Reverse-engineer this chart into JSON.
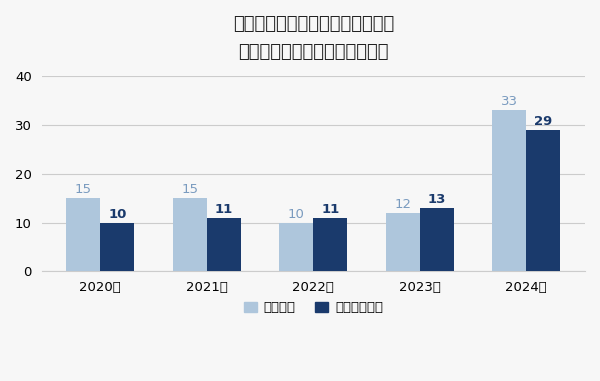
{
  "title_line1": "ペナルティ制度による取締件数と",
  "title_line2": "審査による取引停止件数の推移",
  "years": [
    "2020年",
    "2021年",
    "2022年",
    "2023年",
    "2024年"
  ],
  "series1_label": "取締件数",
  "series2_label": "取引停止件数",
  "series1_values": [
    15,
    15,
    10,
    12,
    33
  ],
  "series2_values": [
    10,
    11,
    11,
    13,
    29
  ],
  "series1_color": "#aec6dc",
  "series2_color": "#1a3a6c",
  "label1_color": "#7a9bbf",
  "label2_color": "#1a3a6c",
  "background_color": "#f7f7f7",
  "ylim": [
    0,
    40
  ],
  "yticks": [
    0,
    10,
    20,
    30,
    40
  ],
  "bar_width": 0.32,
  "title_fontsize": 13,
  "tick_fontsize": 9.5,
  "legend_fontsize": 9.5,
  "value_fontsize": 9.5
}
